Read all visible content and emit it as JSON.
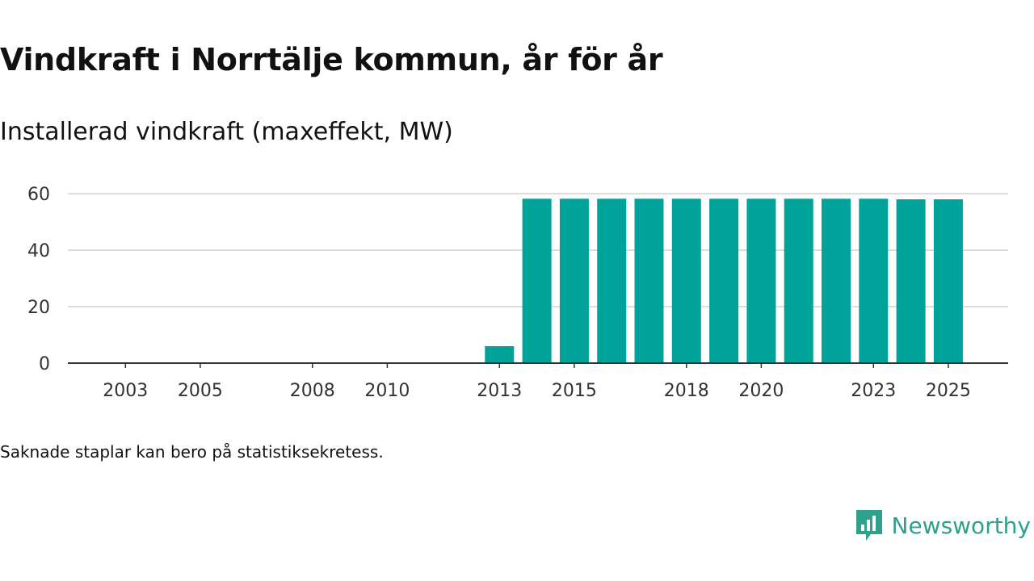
{
  "header": {
    "title": "Vindkraft i Norrtälje kommun, år för år",
    "subtitle": "Installerad vindkraft (maxeffekt, MW)"
  },
  "footnote": "Saknade staplar kan bero på statistiksekretess.",
  "brand": {
    "name": "Newsworthy",
    "logo_icon": "newsworthy-bar-chart-icon"
  },
  "colors": {
    "bar": "#00a39a",
    "grid": "#dddddd",
    "axis": "#333333",
    "brand": "#2fa08c"
  },
  "chart_data": {
    "type": "bar",
    "title": "Vindkraft i Norrtälje kommun, år för år",
    "subtitle": "Installerad vindkraft (maxeffekt, MW)",
    "xlabel": "",
    "ylabel": "MW",
    "ylim": [
      0,
      60
    ],
    "yticks": [
      0,
      20,
      40,
      60
    ],
    "grid": true,
    "categories": [
      "2002",
      "2003",
      "2004",
      "2005",
      "2006",
      "2007",
      "2008",
      "2009",
      "2010",
      "2011",
      "2012",
      "2013",
      "2014",
      "2015",
      "2016",
      "2017",
      "2018",
      "2019",
      "2020",
      "2021",
      "2022",
      "2023",
      "2024",
      "2025"
    ],
    "values": [
      null,
      null,
      null,
      null,
      null,
      null,
      null,
      null,
      null,
      null,
      null,
      6,
      58.2,
      58.2,
      58.2,
      58.2,
      58.2,
      58.2,
      58.2,
      58.2,
      58.2,
      58.2,
      58,
      58
    ],
    "xtick_labels": [
      "2003",
      "2005",
      "2008",
      "2010",
      "2013",
      "2015",
      "2018",
      "2020",
      "2023",
      "2025"
    ]
  }
}
